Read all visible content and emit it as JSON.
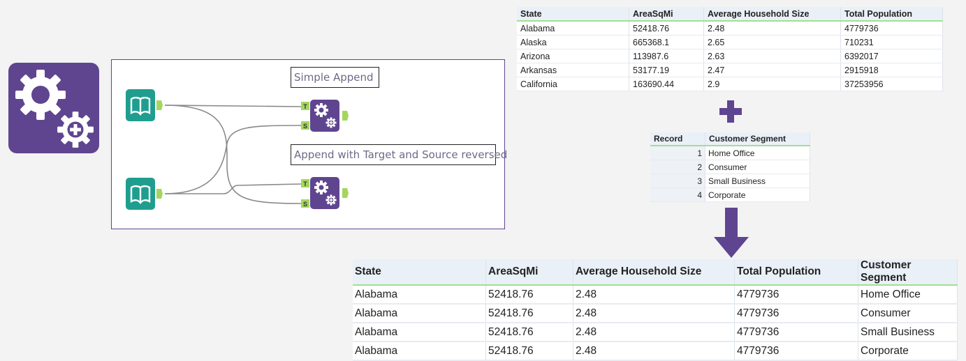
{
  "canvas": {
    "comments": [
      {
        "text": "Simple Append"
      },
      {
        "text": "Append with Target and Source reversed"
      }
    ],
    "anchor_labels": {
      "target": "T",
      "source": "S"
    }
  },
  "input_table": {
    "columns": [
      "State",
      "AreaSqMi",
      "Average Household Size",
      "Total Population"
    ],
    "rows": [
      [
        "Alabama",
        "52418.76",
        "2.48",
        "4779736"
      ],
      [
        "Alaska",
        "665368.1",
        "2.65",
        "710231"
      ],
      [
        "Arizona",
        "113987.6",
        "2.63",
        "6392017"
      ],
      [
        "Arkansas",
        "53177.19",
        "2.47",
        "2915918"
      ],
      [
        "California",
        "163690.44",
        "2.9",
        "37253956"
      ]
    ]
  },
  "source_table": {
    "columns": [
      "Record",
      "Customer Segment"
    ],
    "rows": [
      [
        "1",
        "Home Office"
      ],
      [
        "2",
        "Consumer"
      ],
      [
        "3",
        "Small Business"
      ],
      [
        "4",
        "Corporate"
      ]
    ]
  },
  "result_table": {
    "columns": [
      "State",
      "AreaSqMi",
      "Average Household Size",
      "Total Population",
      "Customer Segment"
    ],
    "rows": [
      [
        "Alabama",
        "52418.76",
        "2.48",
        "4779736",
        "Home Office"
      ],
      [
        "Alabama",
        "52418.76",
        "2.48",
        "4779736",
        "Consumer"
      ],
      [
        "Alabama",
        "52418.76",
        "2.48",
        "4779736",
        "Small Business"
      ],
      [
        "Alabama",
        "52418.76",
        "2.48",
        "4779736",
        "Corporate"
      ]
    ]
  },
  "colors": {
    "tool_purple": "#5f4590",
    "input_teal": "#1f9e8f",
    "anchor_green": "#a4d65e",
    "header_underline": "#9fe08f"
  }
}
